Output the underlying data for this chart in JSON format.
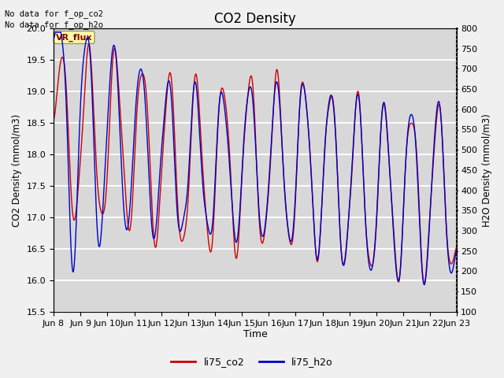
{
  "title": "CO2 Density",
  "xlabel": "Time",
  "ylabel_left": "CO2 Density (mmol/m3)",
  "ylabel_right": "H2O Density (mmol/m3)",
  "ylim_left": [
    15.5,
    20.0
  ],
  "ylim_right": [
    100,
    800
  ],
  "annotation_text1": "No data for f_op_co2",
  "annotation_text2": "No data for f_op_h2o",
  "vr_flux_label": "VR_flux",
  "legend_labels": [
    "li75_co2",
    "li75_h2o"
  ],
  "co2_color": "#cc0000",
  "h2o_color": "#0000cc",
  "fig_facecolor": "#f0f0f0",
  "ax_facecolor": "#d8d8d8",
  "yticks_left": [
    15.5,
    16.0,
    16.5,
    17.0,
    17.5,
    18.0,
    18.5,
    19.0,
    19.5,
    20.0
  ],
  "yticks_right": [
    100,
    150,
    200,
    250,
    300,
    350,
    400,
    450,
    500,
    550,
    600,
    650,
    700,
    750,
    800
  ],
  "x_tick_labels": [
    "Jun 8",
    "Jun 9",
    "Jun 10",
    "Jun 11",
    "Jun 12",
    "Jun 13",
    "Jun 14",
    "Jun 15",
    "Jun 16",
    "Jun 17",
    "Jun 18",
    "Jun 19",
    "Jun 20",
    "Jun 21",
    "Jun 22",
    "Jun 23"
  ]
}
